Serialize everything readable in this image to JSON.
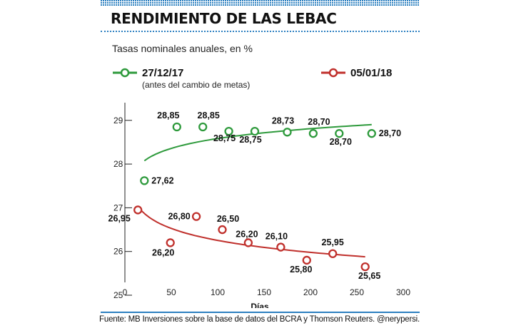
{
  "title": "RENDIMIENTO DE LAS LEBAC",
  "subtitle": "Tasas nominales anuales, en %",
  "source": "Fuente: MB Inversiones sobre la base de datos del BCRA y Thomson Reuters. @nerypersi.",
  "colors": {
    "accent": "#2b7fc0",
    "green": "#2e9a3c",
    "red": "#c0302c"
  },
  "chart_data": {
    "type": "scatter",
    "xlabel": "Días",
    "ylabel": "",
    "xlim": [
      0,
      300
    ],
    "ylim": [
      25,
      29.6
    ],
    "xticks": [
      "0",
      "50",
      "100",
      "150",
      "200",
      "250",
      "300"
    ],
    "yticks": [
      "25",
      "26",
      "27",
      "28",
      "29"
    ],
    "grid": false,
    "legend_placement": "top",
    "series": [
      {
        "name": "27/12/17",
        "note": "(antes del cambio de metas)",
        "color": "#2e9a3c",
        "x": [
          21,
          56,
          84,
          112,
          140,
          175,
          203,
          231,
          266
        ],
        "y": [
          27.62,
          28.85,
          28.85,
          28.75,
          28.75,
          28.73,
          28.7,
          28.7,
          28.7
        ],
        "labels": [
          "27,62",
          "28,85",
          "28,85",
          "28,75",
          "28,75",
          "28,73",
          "28,70",
          "28,70",
          "28,70"
        ],
        "trend": {
          "x": [
            21,
            266
          ],
          "curve": "logarithmic"
        }
      },
      {
        "name": "05/01/18",
        "color": "#c0302c",
        "x": [
          14,
          49,
          77,
          105,
          133,
          168,
          196,
          224,
          259
        ],
        "y": [
          26.95,
          26.2,
          26.8,
          26.5,
          26.2,
          26.1,
          25.8,
          25.95,
          25.65
        ],
        "labels": [
          "26,95",
          "26,20",
          "26,80",
          "26,50",
          "26,20",
          "26,10",
          "25,80",
          "25,95",
          "25,65"
        ],
        "trend": {
          "x": [
            14,
            259
          ],
          "curve": "logarithmic"
        }
      }
    ]
  }
}
